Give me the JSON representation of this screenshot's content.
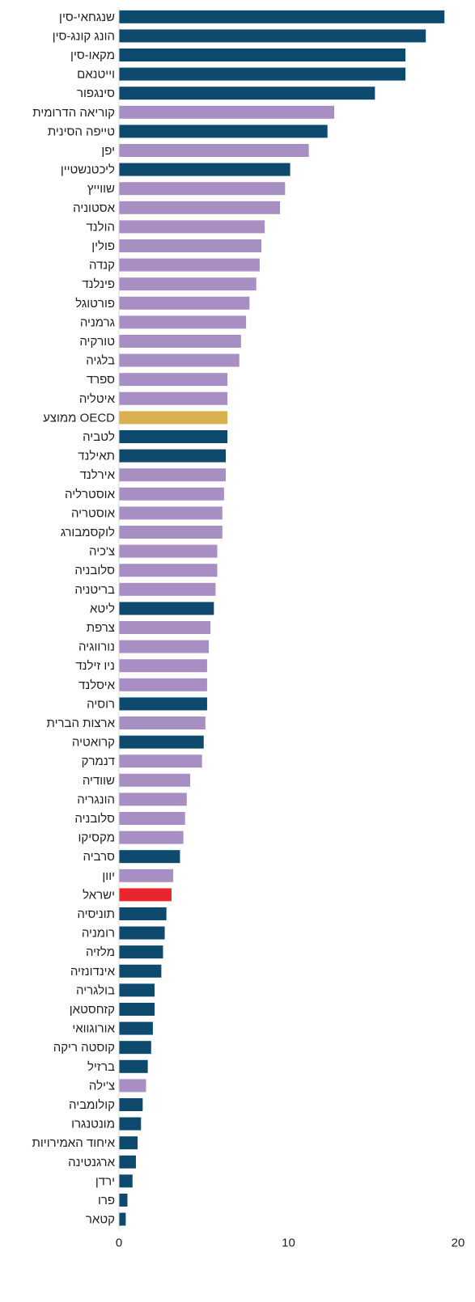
{
  "chart_data": {
    "type": "bar",
    "orientation": "horizontal",
    "categories": [
      "שנגחאי-סין",
      "הונג קונג-סין",
      "מקאו-סין",
      "וייטנאם",
      "סינגפור",
      "קוריאה הדרומית",
      "טייפה הסינית",
      "יפן",
      "ליכטנשטיין",
      "שווייץ",
      "אסטוניה",
      "הולנד",
      "פולין",
      "קנדה",
      "פינלנד",
      "פורטוגל",
      "גרמניה",
      "טורקיה",
      "בלגיה",
      "ספרד",
      "איטליה",
      "ממוצע OECD",
      "לטביה",
      "תאילנד",
      "אירלנד",
      "אוסטרליה",
      "אוסטריה",
      "לוקסמבורג",
      "צ'כיה",
      "סלובניה",
      "בריטניה",
      "ליטא",
      "צרפת",
      "נורווגיה",
      "ניו זילנד",
      "איסלנד",
      "רוסיה",
      "ארצות הברית",
      "קרואטיה",
      "דנמרק",
      "שוודיה",
      "הונגריה",
      "סלובניה",
      "מקסיקו",
      "סרביה",
      "יוון",
      "ישראל",
      "תוניסיה",
      "רומניה",
      "מלזיה",
      "אינדונזיה",
      "בולגריה",
      "קזחסטאן",
      "אורוגוואי",
      "קוסטה ריקה",
      "ברזיל",
      "צ'ילה",
      "קולומביה",
      "מונטנגרו",
      "איחוד האמירויות",
      "ארגנטינה",
      "ירדן",
      "פרו",
      "קטאר"
    ],
    "values": [
      19.2,
      18.1,
      16.9,
      16.9,
      15.1,
      12.7,
      12.3,
      11.2,
      10.1,
      9.8,
      9.5,
      8.6,
      8.4,
      8.3,
      8.1,
      7.7,
      7.5,
      7.2,
      7.1,
      6.4,
      6.4,
      6.4,
      6.4,
      6.3,
      6.3,
      6.2,
      6.1,
      6.1,
      5.8,
      5.8,
      5.7,
      5.6,
      5.4,
      5.3,
      5.2,
      5.2,
      5.2,
      5.1,
      5.0,
      4.9,
      4.2,
      4.0,
      3.9,
      3.8,
      3.6,
      3.2,
      3.1,
      2.8,
      2.7,
      2.6,
      2.5,
      2.1,
      2.1,
      2.0,
      1.9,
      1.7,
      1.6,
      1.4,
      1.3,
      1.1,
      1.0,
      0.8,
      0.5,
      0.4
    ],
    "colors": [
      "#0d4a6e",
      "#0d4a6e",
      "#0d4a6e",
      "#0d4a6e",
      "#0d4a6e",
      "#a78fc4",
      "#0d4a6e",
      "#a78fc4",
      "#0d4a6e",
      "#a78fc4",
      "#a78fc4",
      "#a78fc4",
      "#a78fc4",
      "#a78fc4",
      "#a78fc4",
      "#a78fc4",
      "#a78fc4",
      "#a78fc4",
      "#a78fc4",
      "#a78fc4",
      "#a78fc4",
      "#d9b04f",
      "#0d4a6e",
      "#0d4a6e",
      "#a78fc4",
      "#a78fc4",
      "#a78fc4",
      "#a78fc4",
      "#a78fc4",
      "#a78fc4",
      "#a78fc4",
      "#0d4a6e",
      "#a78fc4",
      "#a78fc4",
      "#a78fc4",
      "#a78fc4",
      "#0d4a6e",
      "#a78fc4",
      "#0d4a6e",
      "#a78fc4",
      "#a78fc4",
      "#a78fc4",
      "#a78fc4",
      "#a78fc4",
      "#0d4a6e",
      "#a78fc4",
      "#e8262b",
      "#0d4a6e",
      "#0d4a6e",
      "#0d4a6e",
      "#0d4a6e",
      "#0d4a6e",
      "#0d4a6e",
      "#0d4a6e",
      "#0d4a6e",
      "#0d4a6e",
      "#a78fc4",
      "#0d4a6e",
      "#0d4a6e",
      "#0d4a6e",
      "#0d4a6e",
      "#0d4a6e",
      "#0d4a6e",
      "#0d4a6e"
    ],
    "xlim": [
      0,
      20
    ],
    "xticks": [
      "0",
      "10",
      "20"
    ],
    "title": "",
    "xlabel": "",
    "ylabel": "",
    "grid": false,
    "legend": "none"
  }
}
